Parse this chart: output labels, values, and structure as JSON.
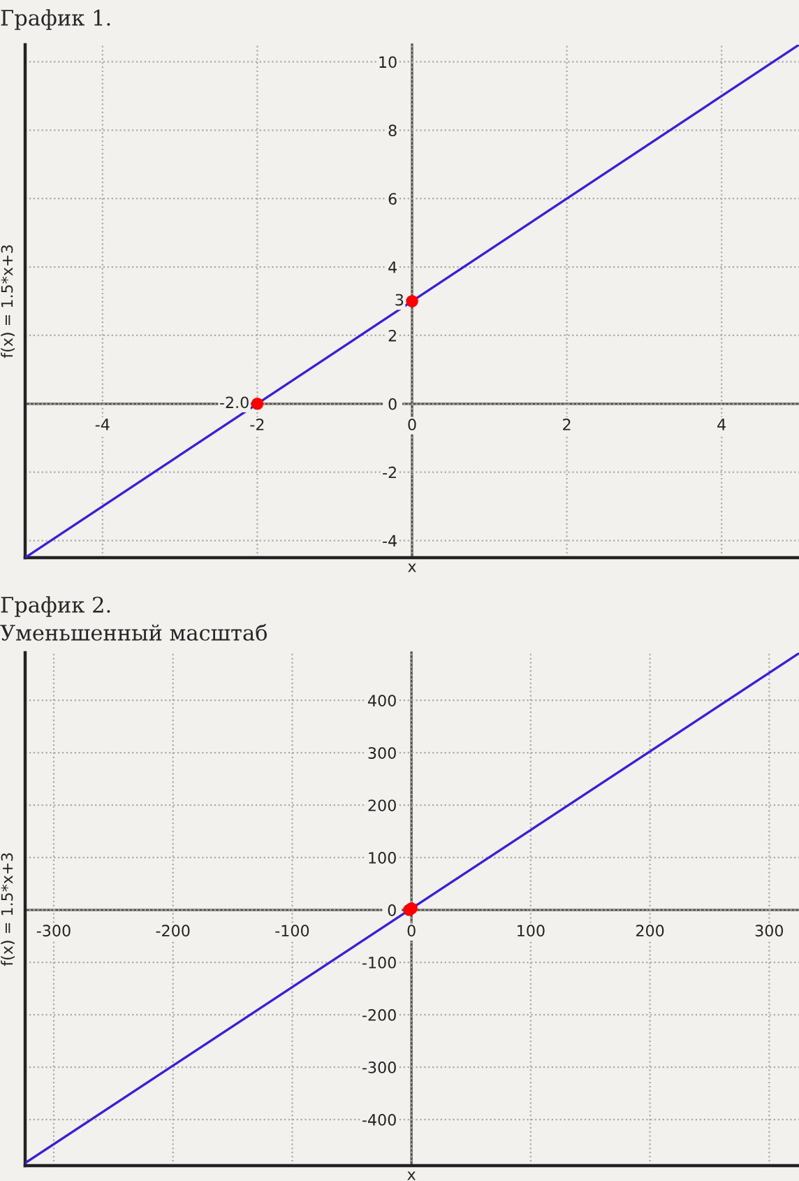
{
  "chart_data": [
    {
      "type": "line",
      "title": "График 1.",
      "xlabel": "x",
      "ylabel": "f(x) = 1.5*x+3",
      "series": [
        {
          "color": "#3a1fd8",
          "x": [
            -5,
            5
          ],
          "values": [
            -4.5,
            10.5
          ],
          "marker": "none"
        },
        {
          "type": "scatter",
          "color": "#ff0000",
          "x": [
            -2,
            0
          ],
          "values": [
            0,
            3
          ],
          "marker": "circle"
        }
      ],
      "annotations": [
        {
          "text": "-2.0",
          "x": -2,
          "y": 0
        },
        {
          "text": "3",
          "x": 0,
          "y": 3
        }
      ],
      "xlim": [
        -5,
        5
      ],
      "ylim": [
        -4.5,
        10.5
      ],
      "xticks": [
        -4,
        -2,
        0,
        2,
        4
      ],
      "yticks": [
        -4,
        -2,
        0,
        2,
        4,
        6,
        8,
        10
      ],
      "grid": true,
      "line_style": "solid"
    },
    {
      "type": "line",
      "title": "График 2.",
      "subtitle": "Уменьшенный масштаб",
      "xlabel": "x",
      "ylabel": "f(x) = 1.5*x+3",
      "series": [
        {
          "color": "#3a1fd8",
          "x": [
            -324,
            325
          ],
          "values": [
            -483,
            490
          ],
          "marker": "none"
        },
        {
          "type": "scatter",
          "color": "#ff0000",
          "x": [
            -2,
            0
          ],
          "values": [
            0,
            3
          ],
          "marker": "circle"
        }
      ],
      "xlim": [
        -324,
        325
      ],
      "ylim": [
        -488,
        491
      ],
      "xticks": [
        -300,
        -200,
        -100,
        0,
        100,
        200,
        300
      ],
      "yticks": [
        -400,
        -300,
        -200,
        -100,
        0,
        100,
        200,
        300,
        400
      ],
      "grid": true,
      "line_style": "solid"
    }
  ]
}
